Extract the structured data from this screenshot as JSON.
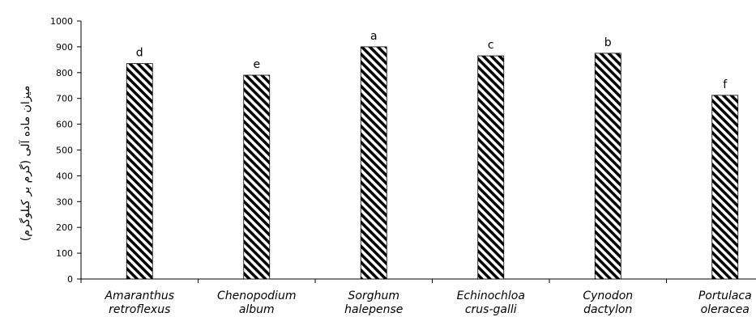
{
  "chart_data": {
    "type": "bar",
    "title": "",
    "xlabel": "",
    "ylabel": "میزان ماده آلی (گرم بر کیلوگرم)",
    "ylim": [
      0,
      1000
    ],
    "yticks": [
      0,
      100,
      200,
      300,
      400,
      500,
      600,
      700,
      800,
      900,
      1000
    ],
    "ytick_labels": [
      "0",
      "100",
      "200",
      "300",
      "400",
      "500",
      "600",
      "700",
      "800",
      "900",
      "1000"
    ],
    "categories": [
      [
        "Amaranthus",
        "retroflexus"
      ],
      [
        "Chenopodium",
        "album"
      ],
      [
        "Sorghum",
        "halepense"
      ],
      [
        "Echinochloa",
        "crus-galli"
      ],
      [
        "Cynodon",
        "dactylon"
      ],
      [
        "Portulaca",
        "oleracea"
      ]
    ],
    "values": [
      835,
      790,
      900,
      865,
      875,
      712
    ],
    "significance_letters": [
      "d",
      "e",
      "a",
      "c",
      "b",
      "f"
    ],
    "bar_pattern": "diagonal-hatch",
    "bar_color": "#000000",
    "grid": false,
    "legend": "none"
  }
}
